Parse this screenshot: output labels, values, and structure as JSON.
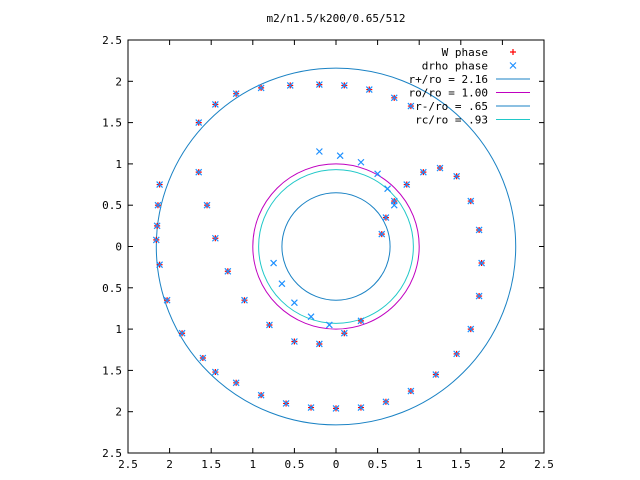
{
  "chart_data": {
    "type": "scatter",
    "title": "m2/n1.5/k200/0.65/512",
    "xlabel": "",
    "ylabel": "",
    "xlim": [
      -2.5,
      2.5
    ],
    "ylim": [
      -2.5,
      2.5
    ],
    "x_ticks": [
      "2.5",
      "2",
      "1.5",
      "1",
      "0.5",
      "0",
      "0.5",
      "1",
      "1.5",
      "2",
      "2.5"
    ],
    "y_ticks": [
      "2.5",
      "2",
      "1.5",
      "1",
      "0.5",
      "0",
      "0.5",
      "1",
      "1.5",
      "2",
      "2.5"
    ],
    "grid": false,
    "legend_position": "top-right",
    "series": [
      {
        "name": "W phase",
        "kind": "points",
        "marker": "+",
        "color": "#ff0000",
        "points": [
          [
            -2.12,
            0.75
          ],
          [
            -2.14,
            0.5
          ],
          [
            -2.15,
            0.25
          ],
          [
            -2.16,
            0.08
          ],
          [
            -2.12,
            -0.22
          ],
          [
            -2.03,
            -0.65
          ],
          [
            -1.85,
            -1.05
          ],
          [
            -1.6,
            -1.35
          ],
          [
            -1.45,
            -1.52
          ],
          [
            -1.2,
            -1.65
          ],
          [
            -0.9,
            -1.8
          ],
          [
            -0.6,
            -1.9
          ],
          [
            -0.3,
            -1.95
          ],
          [
            0.0,
            -1.96
          ],
          [
            0.3,
            -1.95
          ],
          [
            0.6,
            -1.88
          ],
          [
            0.9,
            -1.75
          ],
          [
            1.2,
            -1.55
          ],
          [
            1.45,
            -1.3
          ],
          [
            1.62,
            -1.0
          ],
          [
            1.72,
            -0.6
          ],
          [
            1.75,
            -0.2
          ],
          [
            1.72,
            0.2
          ],
          [
            1.62,
            0.55
          ],
          [
            1.45,
            0.85
          ],
          [
            1.25,
            0.95
          ],
          [
            1.05,
            0.9
          ],
          [
            0.85,
            0.75
          ],
          [
            0.7,
            0.55
          ],
          [
            0.6,
            0.35
          ],
          [
            0.55,
            0.15
          ],
          [
            -1.65,
            1.5
          ],
          [
            -1.45,
            1.72
          ],
          [
            -1.2,
            1.85
          ],
          [
            -0.9,
            1.92
          ],
          [
            -0.55,
            1.95
          ],
          [
            -0.2,
            1.96
          ],
          [
            0.1,
            1.95
          ],
          [
            0.4,
            1.9
          ],
          [
            0.7,
            1.8
          ],
          [
            0.9,
            1.7
          ],
          [
            -1.65,
            0.9
          ],
          [
            -1.55,
            0.5
          ],
          [
            -1.45,
            0.1
          ],
          [
            -1.3,
            -0.3
          ],
          [
            -1.1,
            -0.65
          ],
          [
            -0.8,
            -0.95
          ],
          [
            -0.5,
            -1.15
          ],
          [
            -0.2,
            -1.18
          ],
          [
            0.1,
            -1.05
          ],
          [
            0.3,
            -0.9
          ]
        ]
      },
      {
        "name": "drho phase",
        "kind": "points",
        "marker": "x",
        "color": "#1e90ff",
        "points": [
          [
            -2.12,
            0.75
          ],
          [
            -2.14,
            0.5
          ],
          [
            -2.15,
            0.25
          ],
          [
            -2.16,
            0.08
          ],
          [
            -2.12,
            -0.22
          ],
          [
            -2.03,
            -0.65
          ],
          [
            -1.85,
            -1.05
          ],
          [
            -1.6,
            -1.35
          ],
          [
            -1.45,
            -1.52
          ],
          [
            -1.2,
            -1.65
          ],
          [
            -0.9,
            -1.8
          ],
          [
            -0.6,
            -1.9
          ],
          [
            -0.3,
            -1.95
          ],
          [
            0.0,
            -1.96
          ],
          [
            0.3,
            -1.95
          ],
          [
            0.6,
            -1.88
          ],
          [
            0.9,
            -1.75
          ],
          [
            1.2,
            -1.55
          ],
          [
            1.45,
            -1.3
          ],
          [
            1.62,
            -1.0
          ],
          [
            1.72,
            -0.6
          ],
          [
            1.75,
            -0.2
          ],
          [
            1.72,
            0.2
          ],
          [
            1.62,
            0.55
          ],
          [
            1.45,
            0.85
          ],
          [
            1.25,
            0.95
          ],
          [
            1.05,
            0.9
          ],
          [
            0.85,
            0.75
          ],
          [
            0.7,
            0.55
          ],
          [
            0.6,
            0.35
          ],
          [
            0.55,
            0.15
          ],
          [
            -1.65,
            1.5
          ],
          [
            -1.45,
            1.72
          ],
          [
            -1.2,
            1.85
          ],
          [
            -0.9,
            1.92
          ],
          [
            -0.55,
            1.95
          ],
          [
            -0.2,
            1.96
          ],
          [
            0.1,
            1.95
          ],
          [
            0.4,
            1.9
          ],
          [
            0.7,
            1.8
          ],
          [
            0.9,
            1.7
          ],
          [
            -1.65,
            0.9
          ],
          [
            -1.55,
            0.5
          ],
          [
            -1.45,
            0.1
          ],
          [
            -1.3,
            -0.3
          ],
          [
            -1.1,
            -0.65
          ],
          [
            -0.8,
            -0.95
          ],
          [
            -0.5,
            -1.15
          ],
          [
            -0.2,
            -1.18
          ],
          [
            0.1,
            -1.05
          ],
          [
            0.3,
            -0.9
          ],
          [
            -0.2,
            1.15
          ],
          [
            0.05,
            1.1
          ],
          [
            0.3,
            1.02
          ],
          [
            0.5,
            0.88
          ],
          [
            0.62,
            0.7
          ],
          [
            0.7,
            0.5
          ],
          [
            -0.75,
            -0.2
          ],
          [
            -0.65,
            -0.45
          ],
          [
            -0.5,
            -0.68
          ],
          [
            -0.3,
            -0.85
          ],
          [
            -0.08,
            -0.95
          ]
        ]
      },
      {
        "name": "r+/ro = 2.16",
        "kind": "circle",
        "radius": 2.16,
        "color": "#1a82c4"
      },
      {
        "name": "ro/ro = 1.00",
        "kind": "circle",
        "radius": 1.0,
        "color": "#c000c0"
      },
      {
        "name": "r-/ro = .65",
        "kind": "circle",
        "radius": 0.65,
        "color": "#1a82c4"
      },
      {
        "name": "rc/ro = .93",
        "kind": "circle",
        "radius": 0.93,
        "color": "#20c8c8"
      }
    ]
  }
}
